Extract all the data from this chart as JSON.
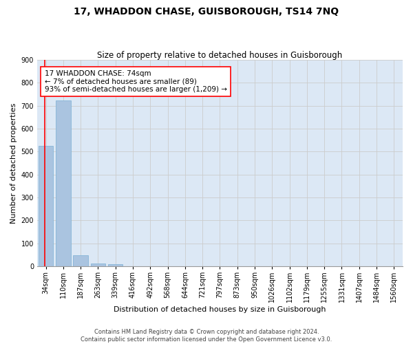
{
  "title": "17, WHADDON CHASE, GUISBOROUGH, TS14 7NQ",
  "subtitle": "Size of property relative to detached houses in Guisborough",
  "xlabel": "Distribution of detached houses by size in Guisborough",
  "ylabel": "Number of detached properties",
  "categories": [
    "34sqm",
    "110sqm",
    "187sqm",
    "263sqm",
    "339sqm",
    "416sqm",
    "492sqm",
    "568sqm",
    "644sqm",
    "721sqm",
    "797sqm",
    "873sqm",
    "950sqm",
    "1026sqm",
    "1102sqm",
    "1179sqm",
    "1255sqm",
    "1331sqm",
    "1407sqm",
    "1484sqm",
    "1560sqm"
  ],
  "values": [
    525,
    723,
    47,
    11,
    9,
    0,
    0,
    0,
    0,
    0,
    0,
    0,
    0,
    0,
    0,
    0,
    0,
    0,
    0,
    0,
    0
  ],
  "bar_color": "#aac4e0",
  "bar_edge_color": "#7aafd4",
  "vline_color": "red",
  "annotation_text": "17 WHADDON CHASE: 74sqm\n← 7% of detached houses are smaller (89)\n93% of semi-detached houses are larger (1,209) →",
  "annotation_box_color": "white",
  "annotation_box_edge": "red",
  "ylim": [
    0,
    900
  ],
  "yticks": [
    0,
    100,
    200,
    300,
    400,
    500,
    600,
    700,
    800,
    900
  ],
  "grid_color": "#cccccc",
  "background_color": "#dce8f5",
  "footer": "Contains HM Land Registry data © Crown copyright and database right 2024.\nContains public sector information licensed under the Open Government Licence v3.0.",
  "title_fontsize": 10,
  "subtitle_fontsize": 8.5,
  "xlabel_fontsize": 8,
  "ylabel_fontsize": 8,
  "tick_fontsize": 7,
  "annotation_fontsize": 7.5,
  "footer_fontsize": 6
}
